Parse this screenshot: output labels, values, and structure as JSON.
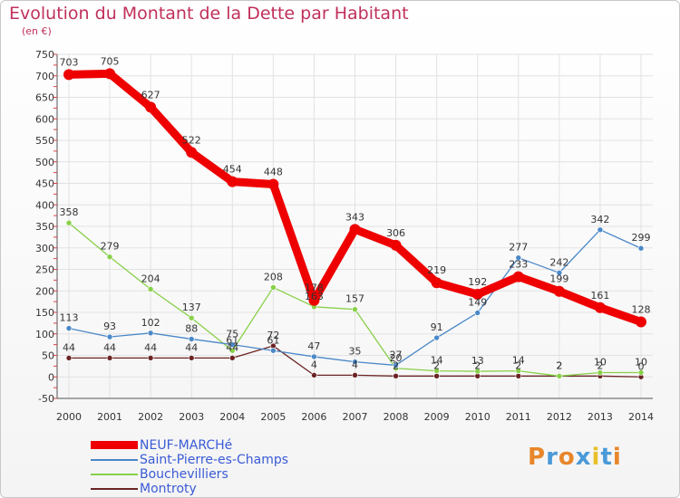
{
  "title": "Evolution du Montant de la Dette par Habitant",
  "unit": "(en €)",
  "logo": {
    "letters": [
      "P",
      "r",
      "o",
      "x",
      "i",
      "t",
      "i"
    ],
    "colors": [
      "#e8862a",
      "#4a9ad8",
      "#e8862a",
      "#4a9ad8",
      "#e8c02a",
      "#4a9ad8",
      "#e8862a"
    ]
  },
  "chart_data": {
    "type": "line",
    "x": [
      "2000",
      "2001",
      "2002",
      "2003",
      "2004",
      "2005",
      "2006",
      "2007",
      "2008",
      "2009",
      "2010",
      "2011",
      "2012",
      "2013",
      "2014"
    ],
    "yticks": [
      "-50",
      "0",
      "50",
      "100",
      "150",
      "200",
      "250",
      "300",
      "350",
      "400",
      "450",
      "500",
      "550",
      "600",
      "650",
      "700",
      "750"
    ],
    "ylim": [
      -50,
      750
    ],
    "grid": true,
    "legend": "bottom-left",
    "series": [
      {
        "name": "Montroty",
        "color": "#6b2424",
        "values": [
          44,
          44,
          44,
          44,
          44,
          72,
          4,
          4,
          2,
          2,
          2,
          2,
          2,
          2,
          0
        ]
      },
      {
        "name": "Bouchevilliers",
        "color": "#88d048",
        "values": [
          358,
          279,
          204,
          137,
          61,
          208,
          163,
          157,
          20,
          14,
          13,
          14,
          2,
          10,
          10
        ]
      },
      {
        "name": "Saint-Pierre-es-Champs",
        "color": "#4a88c8",
        "values": [
          113,
          93,
          102,
          88,
          75,
          61,
          47,
          35,
          27,
          91,
          149,
          277,
          242,
          342,
          299
        ]
      },
      {
        "name": "NEUF-MARCHé",
        "color": "#ee0000",
        "values": [
          703,
          705,
          627,
          522,
          454,
          448,
          178,
          343,
          306,
          219,
          192,
          233,
          199,
          161,
          128
        ]
      }
    ],
    "legend_order": [
      3,
      2,
      1,
      0
    ]
  }
}
